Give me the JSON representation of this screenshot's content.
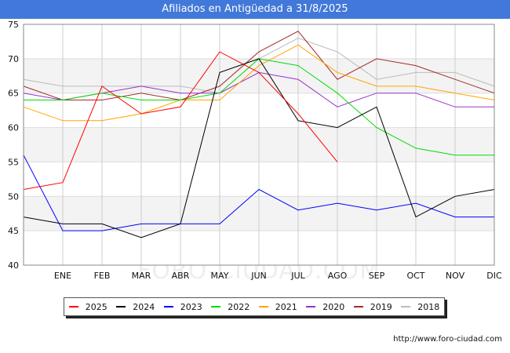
{
  "chart_data": {
    "type": "line",
    "title": "Afiliados en Antigüedad a 31/8/2025",
    "categories": [
      "",
      "ENE",
      "FEB",
      "MAR",
      "ABR",
      "MAY",
      "JUN",
      "JUL",
      "AGO",
      "SEP",
      "OCT",
      "NOV",
      "DIC"
    ],
    "ylim": [
      40,
      75
    ],
    "yticks": [
      40,
      45,
      50,
      55,
      60,
      65,
      70,
      75
    ],
    "grid": true,
    "legend_position": "bottom",
    "series": [
      {
        "name": "2025",
        "color": "#ff0000",
        "values": [
          51,
          52,
          66,
          62,
          63,
          71,
          68,
          62,
          55,
          null,
          null,
          null,
          null
        ]
      },
      {
        "name": "2024",
        "color": "#000000",
        "values": [
          47,
          46,
          46,
          44,
          46,
          68,
          70,
          61,
          60,
          63,
          47,
          50,
          51
        ]
      },
      {
        "name": "2023",
        "color": "#0000ff",
        "values": [
          56,
          45,
          45,
          46,
          46,
          46,
          51,
          48,
          49,
          48,
          49,
          47,
          47
        ]
      },
      {
        "name": "2022",
        "color": "#00dd00",
        "values": [
          64,
          64,
          65,
          64,
          64,
          65,
          70,
          69,
          65,
          60,
          57,
          56,
          56
        ]
      },
      {
        "name": "2021",
        "color": "#ffa500",
        "values": [
          63,
          61,
          61,
          62,
          64,
          64,
          69,
          72,
          68,
          66,
          66,
          65,
          64
        ]
      },
      {
        "name": "2020",
        "color": "#9932cc",
        "values": [
          65,
          64,
          65,
          66,
          65,
          65,
          68,
          67,
          63,
          65,
          65,
          63,
          63
        ]
      },
      {
        "name": "2019",
        "color": "#a52a2a",
        "values": [
          66,
          64,
          64,
          65,
          64,
          66,
          71,
          74,
          67,
          70,
          69,
          67,
          65
        ]
      },
      {
        "name": "2018",
        "color": "#bbbbbb",
        "values": [
          67,
          66,
          66,
          66,
          66,
          65,
          70,
          73,
          71,
          67,
          68,
          68,
          66
        ]
      }
    ]
  },
  "watermark": "FORO-CIUDAD.COM",
  "source": "http://www.foro-ciudad.com"
}
